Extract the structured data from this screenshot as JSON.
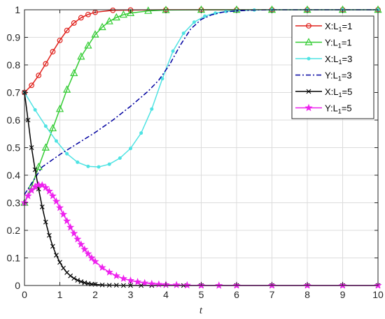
{
  "chart_data": {
    "type": "line",
    "title": "",
    "xlabel": "t",
    "ylabel": "",
    "xlim": [
      0,
      10
    ],
    "ylim": [
      0,
      1
    ],
    "xticks": [
      "0",
      "1",
      "2",
      "3",
      "4",
      "5",
      "6",
      "7",
      "8",
      "9",
      "10"
    ],
    "yticks": [
      "0",
      "0.1",
      "0.2",
      "0.3",
      "0.4",
      "0.5",
      "0.6",
      "0.7",
      "0.8",
      "0.9",
      "1"
    ],
    "grid": true,
    "legend_position": "top-right",
    "series": [
      {
        "name": "X:L1=1",
        "name_main": "X:L",
        "name_sub": "1",
        "name_tail": "=1",
        "color": "#e0201b",
        "marker": "circle",
        "line": "solid",
        "x": [
          0,
          0.2,
          0.4,
          0.6,
          0.8,
          1.0,
          1.2,
          1.4,
          1.6,
          1.8,
          2.0,
          2.5,
          3.0,
          4.0,
          5.0,
          6.0,
          7.0,
          8.0,
          9.0,
          10.0
        ],
        "y": [
          0.7,
          0.726,
          0.762,
          0.804,
          0.848,
          0.889,
          0.925,
          0.952,
          0.971,
          0.983,
          0.991,
          0.998,
          0.999,
          1.0,
          1.0,
          1.0,
          1.0,
          1.0,
          1.0,
          1.0
        ]
      },
      {
        "name": "Y:L1=1",
        "name_main": "Y:L",
        "name_sub": "1",
        "name_tail": "=1",
        "color": "#33cc33",
        "marker": "triangle",
        "line": "solid",
        "x": [
          0,
          0.2,
          0.4,
          0.6,
          0.8,
          1.0,
          1.2,
          1.4,
          1.6,
          1.8,
          2.0,
          2.2,
          2.4,
          2.6,
          2.8,
          3.0,
          3.5,
          4.0,
          5.0,
          6.0,
          7.0,
          8.0,
          9.0,
          10.0
        ],
        "y": [
          0.3,
          0.36,
          0.43,
          0.5,
          0.57,
          0.64,
          0.71,
          0.77,
          0.83,
          0.87,
          0.91,
          0.937,
          0.958,
          0.972,
          0.982,
          0.988,
          0.996,
          0.999,
          1.0,
          1.0,
          1.0,
          1.0,
          1.0,
          1.0
        ]
      },
      {
        "name": "X:L1=3",
        "name_main": "X:L",
        "name_sub": "1",
        "name_tail": "=3",
        "color": "#4fe3e3",
        "marker": "dot",
        "line": "solid",
        "x": [
          0,
          0.3,
          0.6,
          0.9,
          1.2,
          1.5,
          1.8,
          2.1,
          2.4,
          2.7,
          3.0,
          3.3,
          3.6,
          3.9,
          4.2,
          4.5,
          4.8,
          5.1,
          5.4,
          5.7,
          6.0,
          6.5,
          7.0,
          8.0,
          9.0,
          10.0
        ],
        "y": [
          0.7,
          0.637,
          0.578,
          0.524,
          0.478,
          0.447,
          0.432,
          0.43,
          0.44,
          0.462,
          0.497,
          0.553,
          0.64,
          0.75,
          0.85,
          0.915,
          0.955,
          0.977,
          0.988,
          0.994,
          0.997,
          0.999,
          1.0,
          1.0,
          1.0,
          1.0
        ]
      },
      {
        "name": "Y:L1=3",
        "name_main": "Y:L",
        "name_sub": "1",
        "name_tail": "=3",
        "color": "#0000a0",
        "marker": "none",
        "line": "dashdot",
        "x": [
          0,
          0.5,
          1.0,
          1.5,
          2.0,
          2.5,
          3.0,
          3.5,
          3.8,
          4.1,
          4.4,
          4.7,
          5.0,
          5.3,
          5.6,
          6.0,
          6.5,
          7.0,
          8.0,
          9.0,
          10.0
        ],
        "y": [
          0.33,
          0.43,
          0.475,
          0.515,
          0.555,
          0.6,
          0.65,
          0.705,
          0.745,
          0.8,
          0.87,
          0.93,
          0.965,
          0.982,
          0.991,
          0.996,
          0.999,
          1.0,
          1.0,
          1.0,
          1.0
        ]
      },
      {
        "name": "X:L1=5",
        "name_main": "X:L",
        "name_sub": "1",
        "name_tail": "=5",
        "color": "#000000",
        "marker": "x",
        "line": "solid",
        "x": [
          0,
          0.1,
          0.2,
          0.3,
          0.4,
          0.5,
          0.6,
          0.7,
          0.8,
          0.9,
          1.0,
          1.1,
          1.2,
          1.3,
          1.4,
          1.5,
          1.6,
          1.7,
          1.8,
          1.9,
          2.0,
          2.2,
          2.4,
          2.6,
          2.8,
          3.0,
          3.3,
          3.6,
          4.0,
          4.5,
          5.0,
          6.0,
          7.0,
          8.0,
          9.0,
          10.0
        ],
        "y": [
          0.7,
          0.6,
          0.5,
          0.42,
          0.35,
          0.285,
          0.23,
          0.182,
          0.142,
          0.11,
          0.084,
          0.063,
          0.047,
          0.035,
          0.026,
          0.019,
          0.014,
          0.01,
          0.007,
          0.005,
          0.004,
          0.002,
          0.001,
          0.001,
          0.0,
          0.0,
          0.0,
          0.0,
          0.0,
          0.0,
          0.0,
          0.0,
          0.0,
          0.0,
          0.0,
          0.0
        ]
      },
      {
        "name": "Y:L1=5",
        "name_main": "Y:L",
        "name_sub": "1",
        "name_tail": "=5",
        "color": "#ee22ee",
        "marker": "star",
        "line": "solid",
        "x": [
          0,
          0.1,
          0.2,
          0.3,
          0.4,
          0.5,
          0.6,
          0.7,
          0.8,
          0.9,
          1.0,
          1.1,
          1.2,
          1.3,
          1.4,
          1.5,
          1.6,
          1.7,
          1.8,
          1.9,
          2.0,
          2.2,
          2.4,
          2.6,
          2.8,
          3.0,
          3.2,
          3.4,
          3.6,
          3.8,
          4.0,
          4.3,
          4.6,
          5.0,
          5.5,
          6.0,
          7.0,
          8.0,
          9.0,
          10.0
        ],
        "y": [
          0.3,
          0.325,
          0.345,
          0.358,
          0.365,
          0.364,
          0.355,
          0.342,
          0.325,
          0.305,
          0.282,
          0.258,
          0.234,
          0.211,
          0.189,
          0.168,
          0.149,
          0.131,
          0.115,
          0.1,
          0.087,
          0.065,
          0.048,
          0.035,
          0.025,
          0.018,
          0.013,
          0.009,
          0.006,
          0.004,
          0.003,
          0.002,
          0.001,
          0.0,
          0.0,
          0.0,
          0.0,
          0.0,
          0.0,
          0.0
        ]
      }
    ]
  }
}
